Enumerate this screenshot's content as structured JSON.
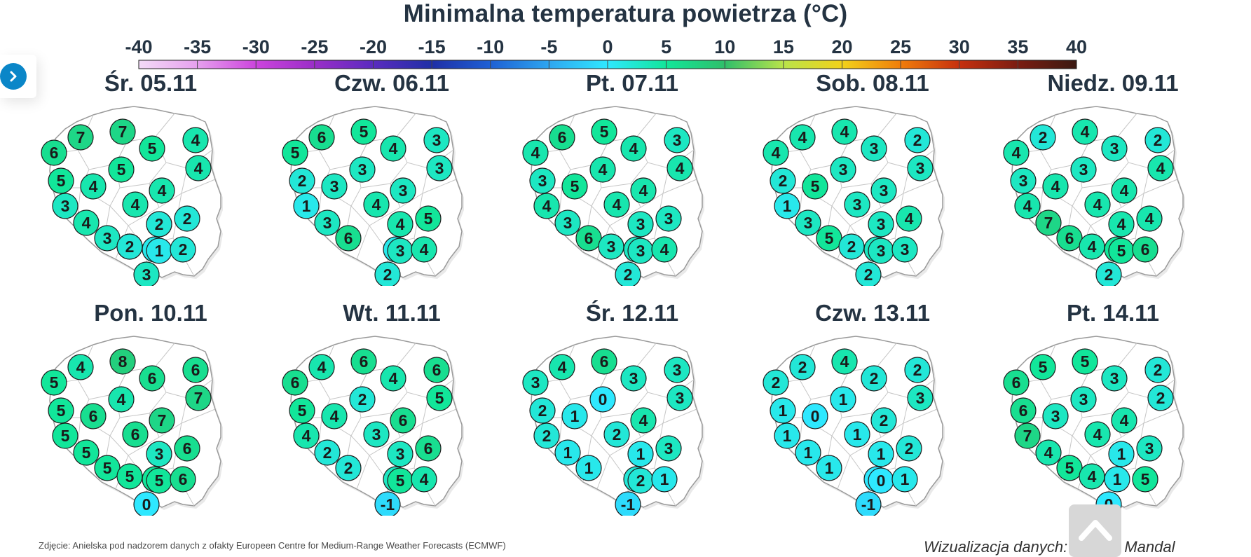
{
  "title": "Minimalna temperatura powietrza (°C)",
  "scale": {
    "ticks": [
      "-40",
      "-35",
      "-30",
      "-25",
      "-20",
      "-15",
      "-10",
      "-5",
      "0",
      "5",
      "10",
      "15",
      "20",
      "25",
      "30",
      "35",
      "40"
    ],
    "colors": [
      {
        "value": -40,
        "color": "#f3dbf7"
      },
      {
        "value": -35,
        "color": "#e6a0ee"
      },
      {
        "value": -30,
        "color": "#cc44dd"
      },
      {
        "value": -25,
        "color": "#9a2ec8"
      },
      {
        "value": -20,
        "color": "#5a2bbf"
      },
      {
        "value": -15,
        "color": "#1f2fa6"
      },
      {
        "value": -10,
        "color": "#1e60d4"
      },
      {
        "value": -5,
        "color": "#2ea6f0"
      },
      {
        "value": 0,
        "color": "#2ee8ff"
      },
      {
        "value": 5,
        "color": "#12e69a"
      },
      {
        "value": 10,
        "color": "#2fbf6a"
      },
      {
        "value": 15,
        "color": "#b9e34a"
      },
      {
        "value": 20,
        "color": "#f2d21a"
      },
      {
        "value": 25,
        "color": "#f07d0a"
      },
      {
        "value": 30,
        "color": "#c6300f"
      },
      {
        "value": 35,
        "color": "#7b1d12"
      },
      {
        "value": 40,
        "color": "#3b1a12"
      }
    ]
  },
  "stations": [
    "szczecin",
    "koszalin",
    "gdansk",
    "suwalki",
    "elblag",
    "olsztyn",
    "gorzow",
    "pila",
    "bydgoszcz",
    "bialystok",
    "poznan",
    "torun",
    "warszawa",
    "zielona_gora",
    "leszno",
    "lodz",
    "siedlce",
    "legnica",
    "kalisz",
    "kielce",
    "lublin",
    "wroclaw",
    "opole",
    "katowice",
    "krakow",
    "rzeszow",
    "nowy_sacz"
  ],
  "days": [
    {
      "label": "Śr. 05.11",
      "temps": {
        "koszalin": 7,
        "gdansk": 7,
        "szczecin": 6,
        "elblag": 5,
        "suwalki": 4,
        "olsztyn": 5,
        "bialystok": 4,
        "gorzow": 5,
        "poznan": 4,
        "zielona_gora": 3,
        "warszawa": 4,
        "lodz": 4,
        "siedlce": 2,
        "lublin": 2,
        "legnica": 4,
        "wroclaw": 3,
        "kalisz": 2,
        "kielce": 2,
        "opole": 2,
        "katowice": 1,
        "krakow": 1,
        "rzeszow": 2,
        "nowy_sacz": 3
      }
    },
    {
      "label": "Czw. 06.11",
      "temps": {
        "koszalin": 6,
        "gdansk": 5,
        "szczecin": 5,
        "elblag": 4,
        "suwalki": 3,
        "bialystok": 3,
        "olsztyn": 3,
        "pila": 2,
        "poznan": 3,
        "zielona_gora": 1,
        "warszawa": 3,
        "lodz": 4,
        "kielce": 4,
        "lublin": 5,
        "legnica": 3,
        "wroclaw": 6,
        "katowice": 1,
        "krakow": 3,
        "rzeszow": 4,
        "nowy_sacz": 2
      }
    },
    {
      "label": "Pt. 07.11",
      "temps": {
        "koszalin": 6,
        "gdansk": 5,
        "szczecin": 4,
        "elblag": 4,
        "suwalki": 3,
        "bialystok": 4,
        "pila": 3,
        "poznan": 5,
        "olsztyn": 4,
        "warszawa": 4,
        "zielona_gora": 4,
        "lodz": 4,
        "legnica": 3,
        "kielce": 3,
        "lublin": 3,
        "wroclaw": 6,
        "katowice": 3,
        "krakow": 3,
        "rzeszow": 4,
        "opole": 3,
        "nowy_sacz": 2
      }
    },
    {
      "label": "Sob. 08.11",
      "temps": {
        "koszalin": 4,
        "gdansk": 4,
        "szczecin": 4,
        "elblag": 3,
        "suwalki": 2,
        "bialystok": 3,
        "olsztyn": 3,
        "pila": 2,
        "poznan": 5,
        "zielona_gora": 1,
        "warszawa": 3,
        "lodz": 3,
        "kielce": 3,
        "lublin": 4,
        "legnica": 3,
        "wroclaw": 5,
        "opole": 2,
        "katowice": 3,
        "krakow": 3,
        "rzeszow": 3,
        "nowy_sacz": 2
      }
    },
    {
      "label": "Niedz. 09.11",
      "temps": {
        "koszalin": 2,
        "gdansk": 4,
        "szczecin": 4,
        "elblag": 3,
        "suwalki": 2,
        "bialystok": 4,
        "olsztyn": 3,
        "pila": 3,
        "poznan": 4,
        "zielona_gora": 4,
        "warszawa": 4,
        "lodz": 4,
        "legnica": 7,
        "kielce": 4,
        "lublin": 4,
        "wroclaw": 6,
        "opole": 4,
        "katowice": 5,
        "krakow": 5,
        "rzeszow": 6,
        "nowy_sacz": 2
      }
    },
    {
      "label": "Pon. 10.11",
      "temps": {
        "koszalin": 4,
        "gdansk": 8,
        "szczecin": 5,
        "elblag": 6,
        "suwalki": 6,
        "bialystok": 7,
        "olsztyn": 4,
        "gorzow": 5,
        "poznan": 6,
        "warszawa": 7,
        "zielona_gora": 5,
        "lodz": 6,
        "lublin": 6,
        "legnica": 5,
        "kielce": 3,
        "wroclaw": 5,
        "kalisz": 5,
        "katowice": 5,
        "krakow": 5,
        "rzeszow": 6,
        "nowy_sacz": 0
      }
    },
    {
      "label": "Wt. 11.11",
      "temps": {
        "koszalin": 4,
        "gdansk": 6,
        "szczecin": 6,
        "elblag": 4,
        "suwalki": 6,
        "bialystok": 5,
        "olsztyn": 2,
        "gorzow": 5,
        "poznan": 4,
        "warszawa": 6,
        "zielona_gora": 4,
        "lodz": 3,
        "lublin": 6,
        "legnica": 2,
        "kielce": 3,
        "wroclaw": 2,
        "katowice": 3,
        "krakow": 5,
        "rzeszow": 4,
        "nowy_sacz": -1
      }
    },
    {
      "label": "Śr. 12.11",
      "temps": {
        "koszalin": 4,
        "gdansk": 6,
        "szczecin": 3,
        "elblag": 3,
        "suwalki": 3,
        "bialystok": 3,
        "olsztyn": 0,
        "gorzow": 2,
        "poznan": 1,
        "warszawa": 4,
        "zielona_gora": 2,
        "lodz": 2,
        "lublin": 3,
        "legnica": 1,
        "kielce": 1,
        "wroclaw": 1,
        "katowice": 2,
        "krakow": 2,
        "rzeszow": 1,
        "nowy_sacz": -1
      }
    },
    {
      "label": "Czw. 13.11",
      "temps": {
        "koszalin": 2,
        "gdansk": 4,
        "szczecin": 2,
        "elblag": 2,
        "suwalki": 2,
        "bialystok": 3,
        "olsztyn": 1,
        "gorzow": 1,
        "poznan": 0,
        "warszawa": 2,
        "zielona_gora": 1,
        "lodz": 1,
        "lublin": 2,
        "legnica": 1,
        "kielce": 1,
        "wroclaw": 1,
        "katowice": 0,
        "krakow": 0,
        "rzeszow": 1,
        "nowy_sacz": -1
      }
    },
    {
      "label": "Pt. 14.11",
      "temps": {
        "koszalin": 5,
        "gdansk": 5,
        "szczecin": 6,
        "elblag": 3,
        "suwalki": 2,
        "bialystok": 2,
        "olsztyn": 3,
        "gorzow": 6,
        "poznan": 3,
        "warszawa": 4,
        "zielona_gora": 7,
        "lodz": 4,
        "legnica": 4,
        "kielce": 1,
        "lublin": 3,
        "wroclaw": 5,
        "opole": 4,
        "katowice": 1,
        "rzeszow": 5,
        "nowy_sacz": 0
      }
    }
  ],
  "footer": {
    "source": "Zdjęcie: Anielska pod nadzorem danych z ofakty Europeen Centre for Medium-Range Weather Forecasts (ECMWF)",
    "credit": "Wizualizacja danych: dr Alan Mandal"
  }
}
